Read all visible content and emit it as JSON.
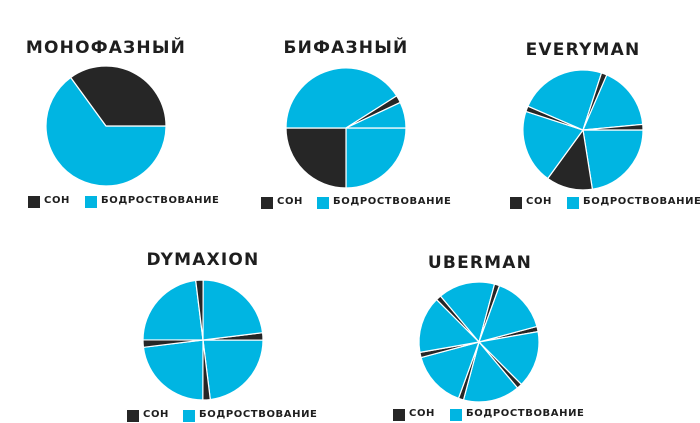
{
  "colors": {
    "sleep": "#262626",
    "awake": "#00b5e2",
    "separator": "#ffffff"
  },
  "legend": {
    "sleep_label": "СОН",
    "awake_label": "БОДРОСТВОВАНИЕ"
  },
  "chart_data": [
    {
      "type": "pie",
      "title": "МОНОФАЗНЫЙ",
      "unit": "fraction of day",
      "categories": [
        "СОН",
        "БОДРОСТВОВАНИЕ"
      ],
      "slices": [
        {
          "label": "БОДРОСТВОВАНИЕ",
          "value": 0.65
        },
        {
          "label": "СОН",
          "value": 0.35
        }
      ]
    },
    {
      "type": "pie",
      "title": "БИФАЗНЫЙ",
      "unit": "fraction of day",
      "categories": [
        "СОН",
        "БОДРОСТВОВАНИЕ"
      ],
      "slices": [
        {
          "label": "БОДРОСТВОВАНИЕ",
          "value": 0.25
        },
        {
          "label": "СОН",
          "value": 0.25
        },
        {
          "label": "БОДРОСТВОВАНИЕ",
          "value": 0.41
        },
        {
          "label": "СОН",
          "value": 0.02
        },
        {
          "label": "БОДРОСТВОВАНИЕ",
          "value": 0.07
        }
      ]
    },
    {
      "type": "pie",
      "title": "EVERYMAN",
      "unit": "fraction of day",
      "categories": [
        "СОН",
        "БОДРОСТВОВАНИЕ"
      ],
      "slices": [
        {
          "label": "БОДРОСТВОВАНИЕ",
          "value": 0.225
        },
        {
          "label": "СОН",
          "value": 0.125
        },
        {
          "label": "БОДРОСТВОВАНИЕ",
          "value": 0.2
        },
        {
          "label": "СОН",
          "value": 0.015
        },
        {
          "label": "БОДРОСТВОВАНИЕ",
          "value": 0.235
        },
        {
          "label": "СОН",
          "value": 0.015
        },
        {
          "label": "БОДРОСТВОВАНИЕ",
          "value": 0.17
        },
        {
          "label": "СОН",
          "value": 0.015
        }
      ]
    },
    {
      "type": "pie",
      "title": "DYMAXION",
      "unit": "fraction of day",
      "categories": [
        "СОН",
        "БОДРОСТВОВАНИЕ"
      ],
      "slices": [
        {
          "label": "СОН",
          "value": 0.02
        },
        {
          "label": "БОДРОСТВОВАНИЕ",
          "value": 0.23
        },
        {
          "label": "СОН",
          "value": 0.02
        },
        {
          "label": "БОДРОСТВОВАНИЕ",
          "value": 0.23
        },
        {
          "label": "СОН",
          "value": 0.02
        },
        {
          "label": "БОДРОСТВОВАНИЕ",
          "value": 0.23
        },
        {
          "label": "СОН",
          "value": 0.02
        },
        {
          "label": "БОДРОСТВОВАНИЕ",
          "value": 0.23
        }
      ]
    },
    {
      "type": "pie",
      "title": "UBERMAN",
      "unit": "fraction of day",
      "categories": [
        "СОН",
        "БОДРОСТВОВАНИЕ"
      ],
      "slices": [
        {
          "label": "СОН",
          "value": 0.014
        },
        {
          "label": "БОДРОСТВОВАНИЕ",
          "value": 0.153
        },
        {
          "label": "СОН",
          "value": 0.014
        },
        {
          "label": "БОДРОСТВОВАНИЕ",
          "value": 0.153
        },
        {
          "label": "СОН",
          "value": 0.014
        },
        {
          "label": "БОДРОСТВОВАНИЕ",
          "value": 0.153
        },
        {
          "label": "СОН",
          "value": 0.014
        },
        {
          "label": "БОДРОСТВОВАНИЕ",
          "value": 0.153
        },
        {
          "label": "СОН",
          "value": 0.014
        },
        {
          "label": "БОДРОСТВОВАНИЕ",
          "value": 0.153
        },
        {
          "label": "СОН",
          "value": 0.014
        },
        {
          "label": "БОДРОСТВОВАНИЕ",
          "value": 0.153
        }
      ]
    }
  ]
}
